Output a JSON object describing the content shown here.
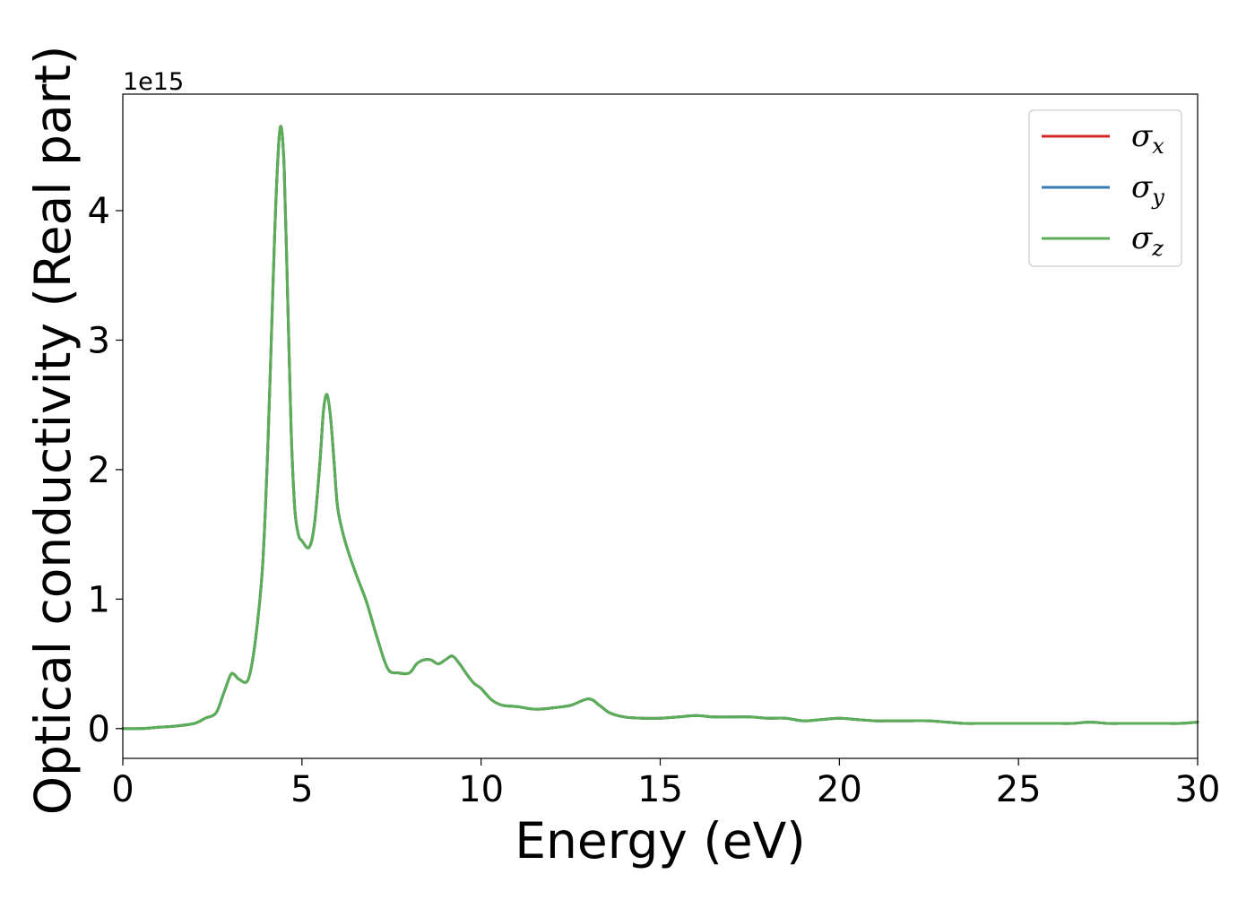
{
  "chart_data": {
    "type": "line",
    "xlabel": "Energy (eV)",
    "ylabel": "Optical conductivity (Real part)",
    "y_offset_label": "1e15",
    "xlim": [
      0,
      30
    ],
    "ylim": [
      -0.23,
      4.9
    ],
    "x_ticks": [
      "0",
      "5",
      "10",
      "15",
      "20",
      "25",
      "30"
    ],
    "y_ticks": [
      "0",
      "1",
      "2",
      "3",
      "4"
    ],
    "grid": false,
    "legend_position": "top-right",
    "x": [
      0,
      0.5,
      1.0,
      1.5,
      2.0,
      2.3,
      2.6,
      2.8,
      3.0,
      3.1,
      3.25,
      3.5,
      3.7,
      3.9,
      4.05,
      4.2,
      4.3,
      4.4,
      4.5,
      4.6,
      4.7,
      4.8,
      4.9,
      5.0,
      5.2,
      5.35,
      5.5,
      5.6,
      5.7,
      5.8,
      5.9,
      6.0,
      6.2,
      6.5,
      6.8,
      7.1,
      7.4,
      7.7,
      8.0,
      8.2,
      8.4,
      8.6,
      8.8,
      9.0,
      9.2,
      9.4,
      9.6,
      9.8,
      10.0,
      10.3,
      10.6,
      11.0,
      11.5,
      12.0,
      12.5,
      13.0,
      13.3,
      13.6,
      14.0,
      14.5,
      15.0,
      15.5,
      16.0,
      16.5,
      17.0,
      17.5,
      18.0,
      18.5,
      19.0,
      19.5,
      20.0,
      20.5,
      21.0,
      21.5,
      22.0,
      22.5,
      23.0,
      23.5,
      24.0,
      24.5,
      25.0,
      25.5,
      26.0,
      26.5,
      27.0,
      27.5,
      28.0,
      28.5,
      29.0,
      29.5,
      30.0
    ],
    "series": [
      {
        "name": "σx",
        "label_base": "σ",
        "label_sub": "x",
        "color": "#d62728",
        "values": [
          0.0,
          0.0,
          0.01,
          0.02,
          0.04,
          0.08,
          0.12,
          0.26,
          0.41,
          0.42,
          0.38,
          0.38,
          0.68,
          1.25,
          2.2,
          3.5,
          4.25,
          4.65,
          4.35,
          3.35,
          2.3,
          1.7,
          1.5,
          1.45,
          1.4,
          1.58,
          2.05,
          2.45,
          2.58,
          2.4,
          2.05,
          1.7,
          1.45,
          1.2,
          0.98,
          0.7,
          0.46,
          0.43,
          0.43,
          0.5,
          0.53,
          0.53,
          0.5,
          0.53,
          0.56,
          0.5,
          0.42,
          0.35,
          0.31,
          0.22,
          0.18,
          0.17,
          0.15,
          0.16,
          0.18,
          0.23,
          0.18,
          0.12,
          0.09,
          0.08,
          0.08,
          0.09,
          0.1,
          0.09,
          0.09,
          0.09,
          0.08,
          0.08,
          0.06,
          0.07,
          0.08,
          0.07,
          0.06,
          0.06,
          0.06,
          0.06,
          0.05,
          0.04,
          0.04,
          0.04,
          0.04,
          0.04,
          0.04,
          0.04,
          0.05,
          0.04,
          0.04,
          0.04,
          0.04,
          0.04,
          0.05
        ]
      },
      {
        "name": "σy",
        "label_base": "σ",
        "label_sub": "y",
        "color": "#377eb8",
        "values": [
          0.0,
          0.0,
          0.01,
          0.02,
          0.04,
          0.08,
          0.12,
          0.26,
          0.41,
          0.42,
          0.38,
          0.38,
          0.68,
          1.25,
          2.2,
          3.5,
          4.25,
          4.65,
          4.35,
          3.35,
          2.3,
          1.7,
          1.5,
          1.45,
          1.4,
          1.58,
          2.05,
          2.45,
          2.58,
          2.4,
          2.05,
          1.7,
          1.45,
          1.2,
          0.98,
          0.7,
          0.46,
          0.43,
          0.43,
          0.5,
          0.53,
          0.53,
          0.5,
          0.53,
          0.56,
          0.5,
          0.42,
          0.35,
          0.31,
          0.22,
          0.18,
          0.17,
          0.15,
          0.16,
          0.18,
          0.23,
          0.18,
          0.12,
          0.09,
          0.08,
          0.08,
          0.09,
          0.1,
          0.09,
          0.09,
          0.09,
          0.08,
          0.08,
          0.06,
          0.07,
          0.08,
          0.07,
          0.06,
          0.06,
          0.06,
          0.06,
          0.05,
          0.04,
          0.04,
          0.04,
          0.04,
          0.04,
          0.04,
          0.04,
          0.05,
          0.04,
          0.04,
          0.04,
          0.04,
          0.04,
          0.05
        ]
      },
      {
        "name": "σz",
        "label_base": "σ",
        "label_sub": "z",
        "color": "#5aae56",
        "values": [
          0.0,
          0.0,
          0.01,
          0.02,
          0.04,
          0.08,
          0.12,
          0.26,
          0.41,
          0.42,
          0.38,
          0.38,
          0.68,
          1.25,
          2.2,
          3.5,
          4.25,
          4.65,
          4.35,
          3.35,
          2.3,
          1.7,
          1.5,
          1.45,
          1.4,
          1.58,
          2.05,
          2.45,
          2.58,
          2.4,
          2.05,
          1.7,
          1.45,
          1.2,
          0.98,
          0.7,
          0.46,
          0.43,
          0.43,
          0.5,
          0.53,
          0.53,
          0.5,
          0.53,
          0.56,
          0.5,
          0.42,
          0.35,
          0.31,
          0.22,
          0.18,
          0.17,
          0.15,
          0.16,
          0.18,
          0.23,
          0.18,
          0.12,
          0.09,
          0.08,
          0.08,
          0.09,
          0.1,
          0.09,
          0.09,
          0.09,
          0.08,
          0.08,
          0.06,
          0.07,
          0.08,
          0.07,
          0.06,
          0.06,
          0.06,
          0.06,
          0.05,
          0.04,
          0.04,
          0.04,
          0.04,
          0.04,
          0.04,
          0.04,
          0.05,
          0.04,
          0.04,
          0.04,
          0.04,
          0.04,
          0.05
        ]
      }
    ]
  }
}
